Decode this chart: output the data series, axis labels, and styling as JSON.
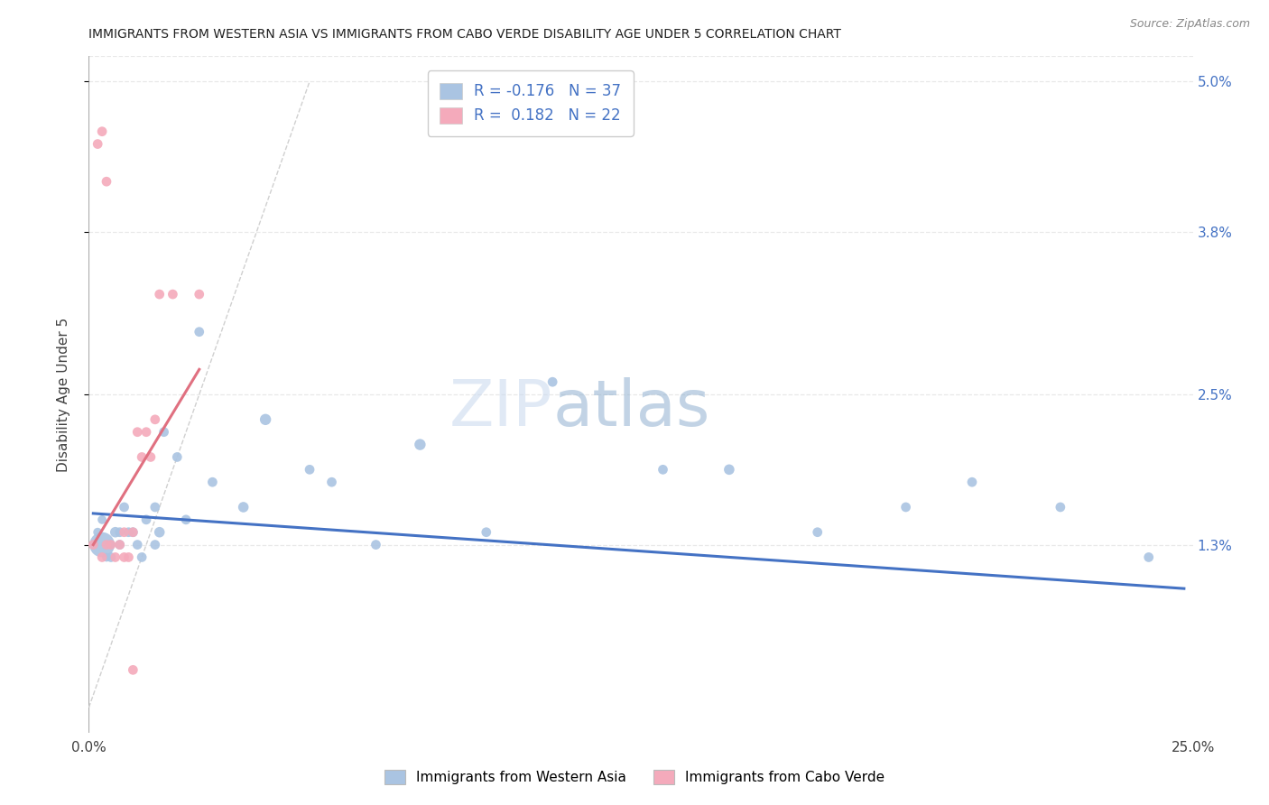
{
  "title": "IMMIGRANTS FROM WESTERN ASIA VS IMMIGRANTS FROM CABO VERDE DISABILITY AGE UNDER 5 CORRELATION CHART",
  "source": "Source: ZipAtlas.com",
  "ylabel": "Disability Age Under 5",
  "xlim": [
    0.0,
    0.25
  ],
  "ylim": [
    -0.002,
    0.052
  ],
  "yticks_right": [
    0.013,
    0.025,
    0.038,
    0.05
  ],
  "ytickslabels_right": [
    "1.3%",
    "2.5%",
    "3.8%",
    "5.0%"
  ],
  "r_blue": -0.176,
  "n_blue": 37,
  "r_pink": 0.182,
  "n_pink": 22,
  "blue_color": "#aac4e2",
  "pink_color": "#f4aabb",
  "blue_line_color": "#4472c4",
  "pink_line_color": "#e07080",
  "legend_blue_label": "Immigrants from Western Asia",
  "legend_pink_label": "Immigrants from Cabo Verde",
  "blue_scatter_x": [
    0.002,
    0.003,
    0.004,
    0.005,
    0.005,
    0.006,
    0.007,
    0.007,
    0.008,
    0.009,
    0.01,
    0.011,
    0.012,
    0.013,
    0.015,
    0.015,
    0.016,
    0.017,
    0.02,
    0.022,
    0.025,
    0.028,
    0.035,
    0.04,
    0.05,
    0.055,
    0.065,
    0.075,
    0.09,
    0.105,
    0.13,
    0.145,
    0.165,
    0.185,
    0.2,
    0.22,
    0.24
  ],
  "blue_scatter_y": [
    0.014,
    0.015,
    0.012,
    0.013,
    0.012,
    0.014,
    0.013,
    0.014,
    0.016,
    0.014,
    0.014,
    0.013,
    0.012,
    0.015,
    0.016,
    0.013,
    0.014,
    0.022,
    0.02,
    0.015,
    0.03,
    0.018,
    0.016,
    0.023,
    0.019,
    0.018,
    0.013,
    0.021,
    0.014,
    0.026,
    0.019,
    0.019,
    0.014,
    0.016,
    0.018,
    0.016,
    0.012
  ],
  "blue_scatter_size": [
    50,
    50,
    50,
    50,
    60,
    70,
    60,
    60,
    60,
    60,
    60,
    60,
    60,
    60,
    60,
    60,
    70,
    60,
    60,
    60,
    60,
    60,
    70,
    80,
    60,
    60,
    60,
    80,
    60,
    60,
    60,
    70,
    60,
    60,
    60,
    60,
    60
  ],
  "blue_big_x": [
    0.003
  ],
  "blue_big_y": [
    0.013
  ],
  "blue_big_size": [
    400
  ],
  "pink_scatter_x": [
    0.001,
    0.002,
    0.003,
    0.003,
    0.004,
    0.004,
    0.005,
    0.006,
    0.007,
    0.008,
    0.008,
    0.009,
    0.01,
    0.01,
    0.011,
    0.012,
    0.013,
    0.014,
    0.015,
    0.016,
    0.019,
    0.025
  ],
  "pink_scatter_y": [
    0.013,
    0.045,
    0.046,
    0.012,
    0.042,
    0.013,
    0.013,
    0.012,
    0.013,
    0.014,
    0.012,
    0.012,
    0.003,
    0.014,
    0.022,
    0.02,
    0.022,
    0.02,
    0.023,
    0.033,
    0.033,
    0.033
  ],
  "pink_scatter_size": [
    60,
    60,
    60,
    60,
    60,
    60,
    60,
    60,
    60,
    60,
    60,
    60,
    60,
    60,
    60,
    60,
    60,
    60,
    60,
    60,
    60,
    60
  ],
  "diag_line_color": "#d0d0d0",
  "background_color": "#ffffff",
  "grid_color": "#e8e8e8",
  "blue_trend_x0": 0.001,
  "blue_trend_x1": 0.248,
  "blue_trend_y0": 0.0155,
  "blue_trend_y1": 0.0095,
  "pink_trend_x0": 0.001,
  "pink_trend_x1": 0.025,
  "pink_trend_y0": 0.013,
  "pink_trend_y1": 0.027
}
